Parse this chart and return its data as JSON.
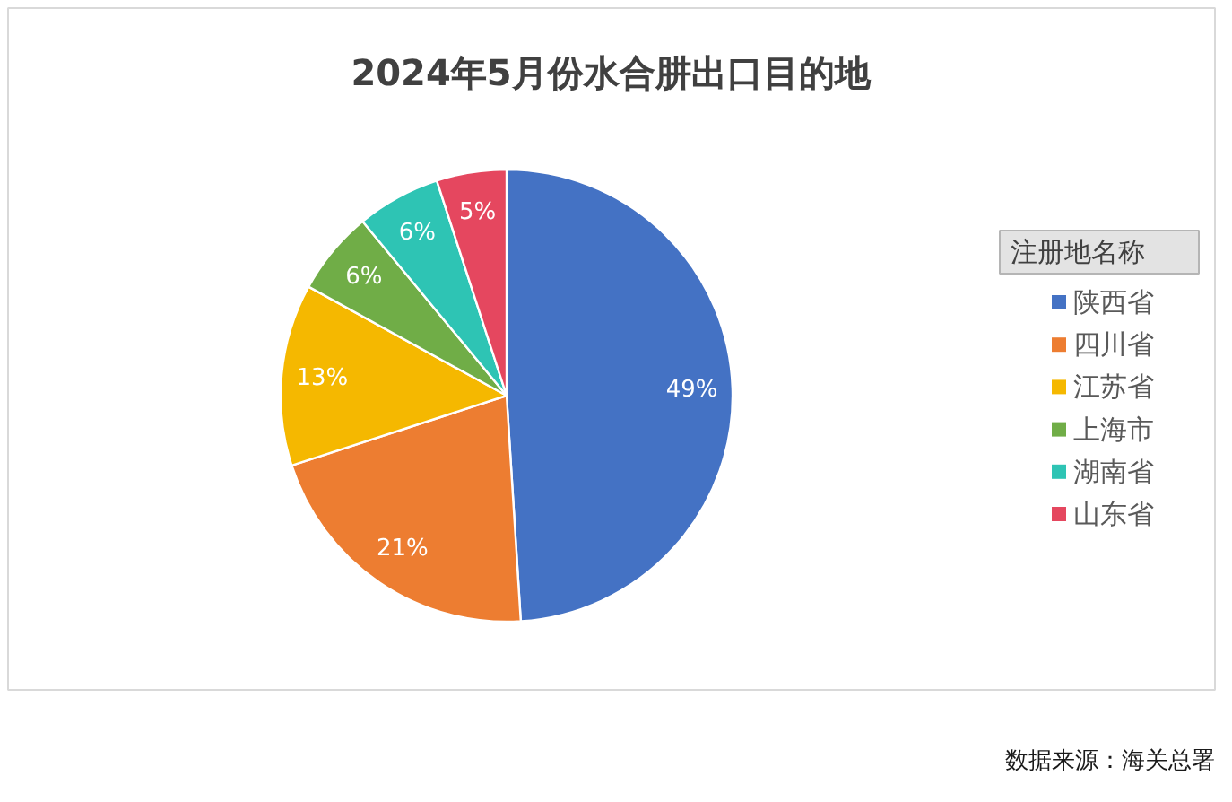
{
  "chart_data": {
    "type": "pie",
    "title": "2024年5月份水合肼出口目的地",
    "legend_title": "注册地名称",
    "categories": [
      "陕西省",
      "四川省",
      "江苏省",
      "上海市",
      "湖南省",
      "山东省"
    ],
    "values": [
      49,
      21,
      13,
      6,
      6,
      5
    ],
    "colors": [
      "#4472c4",
      "#ed7d31",
      "#f5b800",
      "#70ad47",
      "#2ec4b4",
      "#e5475f"
    ],
    "value_labels": [
      "49%",
      "21%",
      "13%",
      "6%",
      "6%",
      "5%"
    ],
    "legend": "right",
    "annotations": [
      "数据来源：海关总署"
    ]
  }
}
